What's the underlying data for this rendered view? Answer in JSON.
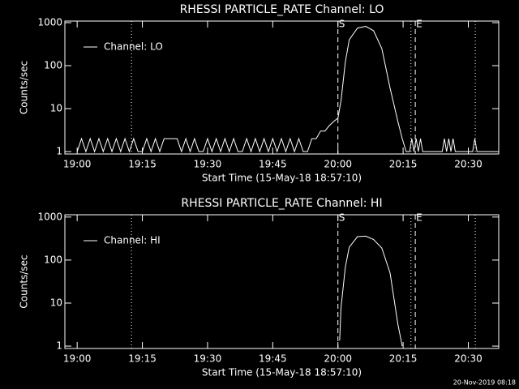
{
  "chart_data": [
    {
      "type": "line",
      "title": "RHESSI PARTICLE_RATE Channel: LO",
      "xlabel": "Start Time (15-May-18 18:57:10)",
      "ylabel": "Counts/sec",
      "log_y": true,
      "legend": "upper left",
      "color": "#ffffff",
      "xlim": [
        1137.17,
        1237
      ],
      "ylim": [
        0.88,
        1090
      ],
      "xticks": [
        {
          "value": 1140,
          "label": "19:00"
        },
        {
          "value": 1155,
          "label": "19:15"
        },
        {
          "value": 1170,
          "label": "19:30"
        },
        {
          "value": 1185,
          "label": "19:45"
        },
        {
          "value": 1200,
          "label": "20:00"
        },
        {
          "value": 1215,
          "label": "20:15"
        },
        {
          "value": 1230,
          "label": "20:30"
        }
      ],
      "yticks": [
        1,
        10,
        100,
        1000
      ],
      "vlines": [
        {
          "x": 1152.5,
          "style": "dotted"
        },
        {
          "x": 1200,
          "style": "dashed",
          "label": "S"
        },
        {
          "x": 1216.8,
          "style": "dotted"
        },
        {
          "x": 1217.8,
          "style": "dashed",
          "label": "E"
        },
        {
          "x": 1231.6,
          "style": "dotted"
        }
      ],
      "series": [
        {
          "name": "Channel: LO",
          "color": "#ffffff",
          "x": [
            1140,
            1141,
            1142,
            1143,
            1144,
            1145,
            1146,
            1147,
            1148,
            1149,
            1150,
            1151,
            1152,
            1153,
            1154,
            1155,
            1156,
            1157,
            1158,
            1159,
            1160,
            1161,
            1162,
            1163,
            1164,
            1165,
            1166,
            1167,
            1168,
            1169,
            1170,
            1171,
            1172,
            1173,
            1174,
            1175,
            1176,
            1177,
            1178,
            1179,
            1180,
            1181,
            1182,
            1183,
            1184,
            1185,
            1186,
            1187,
            1188,
            1189,
            1190,
            1191,
            1192,
            1193,
            1194,
            1195,
            1196,
            1197,
            1198,
            1199,
            1200,
            1200.7,
            1201.7,
            1202.6,
            1204.5,
            1206.4,
            1208.2,
            1210.1,
            1212,
            1213.8,
            1214.8,
            1215.7,
            1216.5,
            1217,
            1217.5,
            1218,
            1218.5,
            1219,
            1219.5,
            1220,
            1224,
            1224.5,
            1225,
            1225.5,
            1226,
            1226.5,
            1227,
            1231,
            1231.5,
            1232,
            1236
          ],
          "values": [
            1,
            2,
            1,
            2,
            1,
            2,
            1,
            2,
            1,
            2,
            1,
            2,
            1,
            2,
            1,
            1,
            2,
            1,
            2,
            1,
            2,
            2,
            2,
            2,
            1,
            2,
            1,
            2,
            1,
            1,
            2,
            1,
            2,
            1,
            2,
            1,
            2,
            1,
            1,
            2,
            1,
            2,
            1,
            2,
            1,
            2,
            1,
            2,
            1,
            2,
            1,
            2,
            1,
            1,
            2,
            2,
            3,
            3,
            4,
            5,
            6,
            15,
            120,
            400,
            750,
            820,
            650,
            250,
            30,
            5,
            2,
            1,
            1,
            2,
            1,
            2,
            1,
            2,
            1,
            1,
            1,
            2,
            1,
            2,
            1,
            2,
            1,
            1,
            2,
            1,
            1
          ]
        }
      ]
    },
    {
      "type": "line",
      "title": "RHESSI PARTICLE_RATE Channel: HI",
      "xlabel": "Start Time (15-May-18 18:57:10)",
      "ylabel": "Counts/sec",
      "log_y": true,
      "legend": "upper left",
      "color": "#ffffff",
      "xlim": [
        1137.17,
        1237
      ],
      "ylim": [
        0.88,
        1130
      ],
      "xticks": [
        {
          "value": 1140,
          "label": "19:00"
        },
        {
          "value": 1155,
          "label": "19:15"
        },
        {
          "value": 1170,
          "label": "19:30"
        },
        {
          "value": 1185,
          "label": "19:45"
        },
        {
          "value": 1200,
          "label": "20:00"
        },
        {
          "value": 1215,
          "label": "20:15"
        },
        {
          "value": 1230,
          "label": "20:30"
        }
      ],
      "yticks": [
        1,
        10,
        100,
        1000
      ],
      "vlines": [
        {
          "x": 1152.5,
          "style": "dotted"
        },
        {
          "x": 1200,
          "style": "dashed",
          "label": "S"
        },
        {
          "x": 1216.8,
          "style": "dotted"
        },
        {
          "x": 1217.8,
          "style": "dashed",
          "label": "E"
        },
        {
          "x": 1231.6,
          "style": "dotted"
        }
      ],
      "series": [
        {
          "name": "Channel: HI",
          "color": "#ffffff",
          "x": [
            1200.4,
            1200.7,
            1201.7,
            1202.6,
            1204.5,
            1206.4,
            1208.2,
            1210.1,
            1212,
            1213.8,
            1214.8
          ],
          "values": [
            1.35,
            7.7,
            68,
            200,
            350,
            360,
            300,
            190,
            50,
            3.2,
            1
          ]
        }
      ]
    }
  ],
  "footer": "20-Nov-2019 08:18"
}
